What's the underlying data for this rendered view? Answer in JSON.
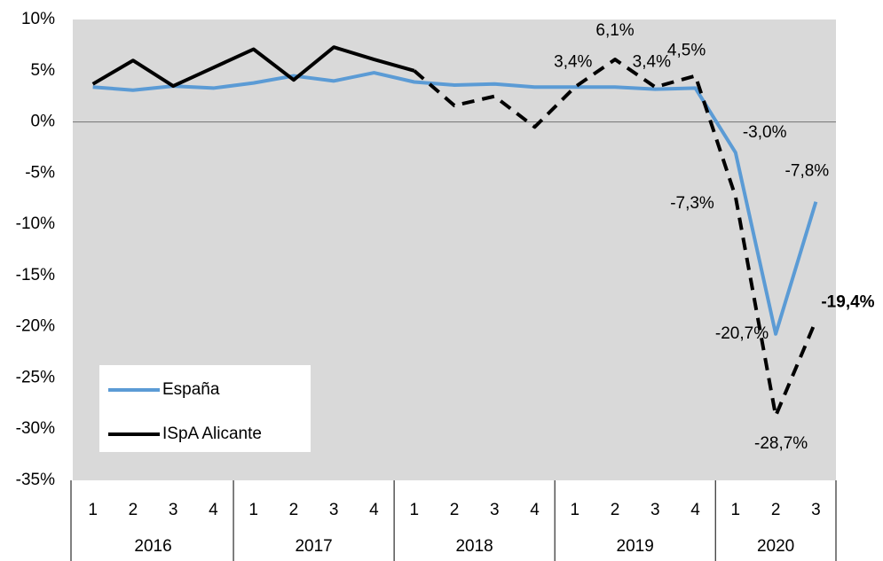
{
  "chart_data": {
    "type": "line",
    "categories": [
      "1",
      "2",
      "3",
      "4",
      "1",
      "2",
      "3",
      "4",
      "1",
      "2",
      "3",
      "4",
      "1",
      "2",
      "3",
      "4",
      "1",
      "2",
      "3"
    ],
    "groups": [
      {
        "label": "2016",
        "span": 4
      },
      {
        "label": "2017",
        "span": 4
      },
      {
        "label": "2018",
        "span": 4
      },
      {
        "label": "2019",
        "span": 4
      },
      {
        "label": "2020",
        "span": 3
      }
    ],
    "series": [
      {
        "name": "España",
        "color": "#5b9bd5",
        "label_color": "#2e75b6",
        "values": [
          3.4,
          3.1,
          3.5,
          3.3,
          3.8,
          4.5,
          4.0,
          4.8,
          3.9,
          3.6,
          3.7,
          3.4,
          3.4,
          3.4,
          3.2,
          3.3,
          -3.0,
          -20.7,
          -7.8
        ],
        "value_labels": [
          null,
          null,
          null,
          null,
          null,
          null,
          null,
          null,
          null,
          null,
          null,
          null,
          null,
          null,
          null,
          null,
          "-3,0%",
          "-20,7%",
          "-7,8%"
        ]
      },
      {
        "name": "ISpA Alicante",
        "color": "#000000",
        "label_color": "#000000",
        "dash_from_index": 8,
        "values": [
          3.7,
          6.0,
          3.5,
          5.3,
          7.1,
          4.1,
          7.3,
          6.1,
          5.0,
          1.6,
          2.5,
          -0.5,
          3.4,
          6.1,
          3.4,
          4.5,
          -7.3,
          -28.7,
          -19.4
        ],
        "value_labels": [
          null,
          null,
          null,
          null,
          null,
          null,
          null,
          null,
          null,
          null,
          null,
          null,
          "3,4%",
          "6,1%",
          "3,4%",
          "4,5%",
          "-7,3%",
          "-28,7%",
          "-19,4%"
        ]
      }
    ],
    "ylim": [
      -35,
      10
    ],
    "yticks": [
      {
        "value": 10,
        "label": "10%"
      },
      {
        "value": 5,
        "label": "5%"
      },
      {
        "value": 0,
        "label": "0%"
      },
      {
        "value": -5,
        "label": "-5%"
      },
      {
        "value": -10,
        "label": "-10%"
      },
      {
        "value": -15,
        "label": "-15%"
      },
      {
        "value": -20,
        "label": "-20%"
      },
      {
        "value": -25,
        "label": "-25%"
      },
      {
        "value": -30,
        "label": "-30%"
      },
      {
        "value": -35,
        "label": "-35%"
      }
    ],
    "legend": "lower-left",
    "background": "#d9d9d9"
  }
}
